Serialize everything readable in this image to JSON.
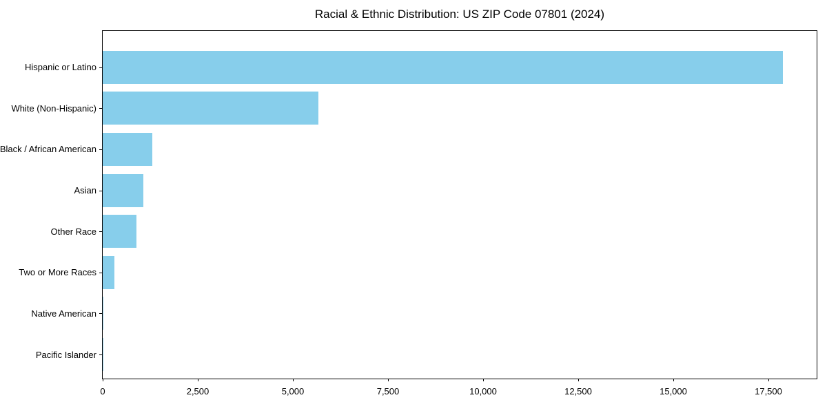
{
  "figure": {
    "background": "#FFFFFF"
  },
  "chart_data": {
    "type": "bar",
    "orientation": "horizontal",
    "title": "Racial & Ethnic Distribution: US ZIP Code 07801 (2024)",
    "categories": [
      "Hispanic or Latino",
      "White (Non-Hispanic)",
      "Black / African American",
      "Asian",
      "Other Race",
      "Two or More Races",
      "Native American",
      "Pacific Islander"
    ],
    "values": [
      17880,
      5670,
      1300,
      1070,
      890,
      315,
      10,
      5
    ],
    "xlabel": "",
    "ylabel": "",
    "xlim": [
      0,
      18790
    ],
    "xticks": [
      0,
      2500,
      5000,
      7500,
      10000,
      12500,
      15000,
      17500
    ],
    "xtick_labels": [
      "0",
      "2,500",
      "5,000",
      "7,500",
      "10,000",
      "12,500",
      "15,000",
      "17,500"
    ],
    "bar_color": "#87CEEB",
    "axis_color": "#000000",
    "text_color": "#000000",
    "grid": false,
    "legend": null
  }
}
